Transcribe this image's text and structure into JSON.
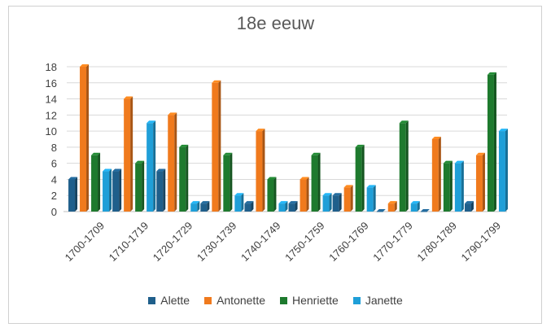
{
  "chart_data": {
    "type": "bar",
    "title": "18e eeuw",
    "categories": [
      "1700-1709",
      "1710-1719",
      "1720-1729",
      "1730-1739",
      "1740-1749",
      "1750-1759",
      "1760-1769",
      "1770-1779",
      "1780-1789",
      "1790-1799"
    ],
    "series": [
      {
        "name": "Alette",
        "color": "#1f5f8b",
        "values": [
          4,
          5,
          5,
          1,
          1,
          1,
          2,
          0,
          0,
          1
        ]
      },
      {
        "name": "Antonette",
        "color": "#f07a1d",
        "values": [
          18,
          14,
          12,
          16,
          10,
          4,
          3,
          1,
          9,
          7
        ]
      },
      {
        "name": "Henriette",
        "color": "#1e7a2e",
        "values": [
          7,
          6,
          8,
          7,
          4,
          7,
          8,
          11,
          6,
          17
        ]
      },
      {
        "name": "Janette",
        "color": "#1f9fd8",
        "values": [
          5,
          11,
          1,
          2,
          1,
          2,
          3,
          1,
          6,
          10
        ]
      }
    ],
    "ylim": [
      0,
      18
    ],
    "yticks": [
      0,
      2,
      4,
      6,
      8,
      10,
      12,
      14,
      16,
      18
    ],
    "grid": true,
    "legend_position": "bottom"
  }
}
